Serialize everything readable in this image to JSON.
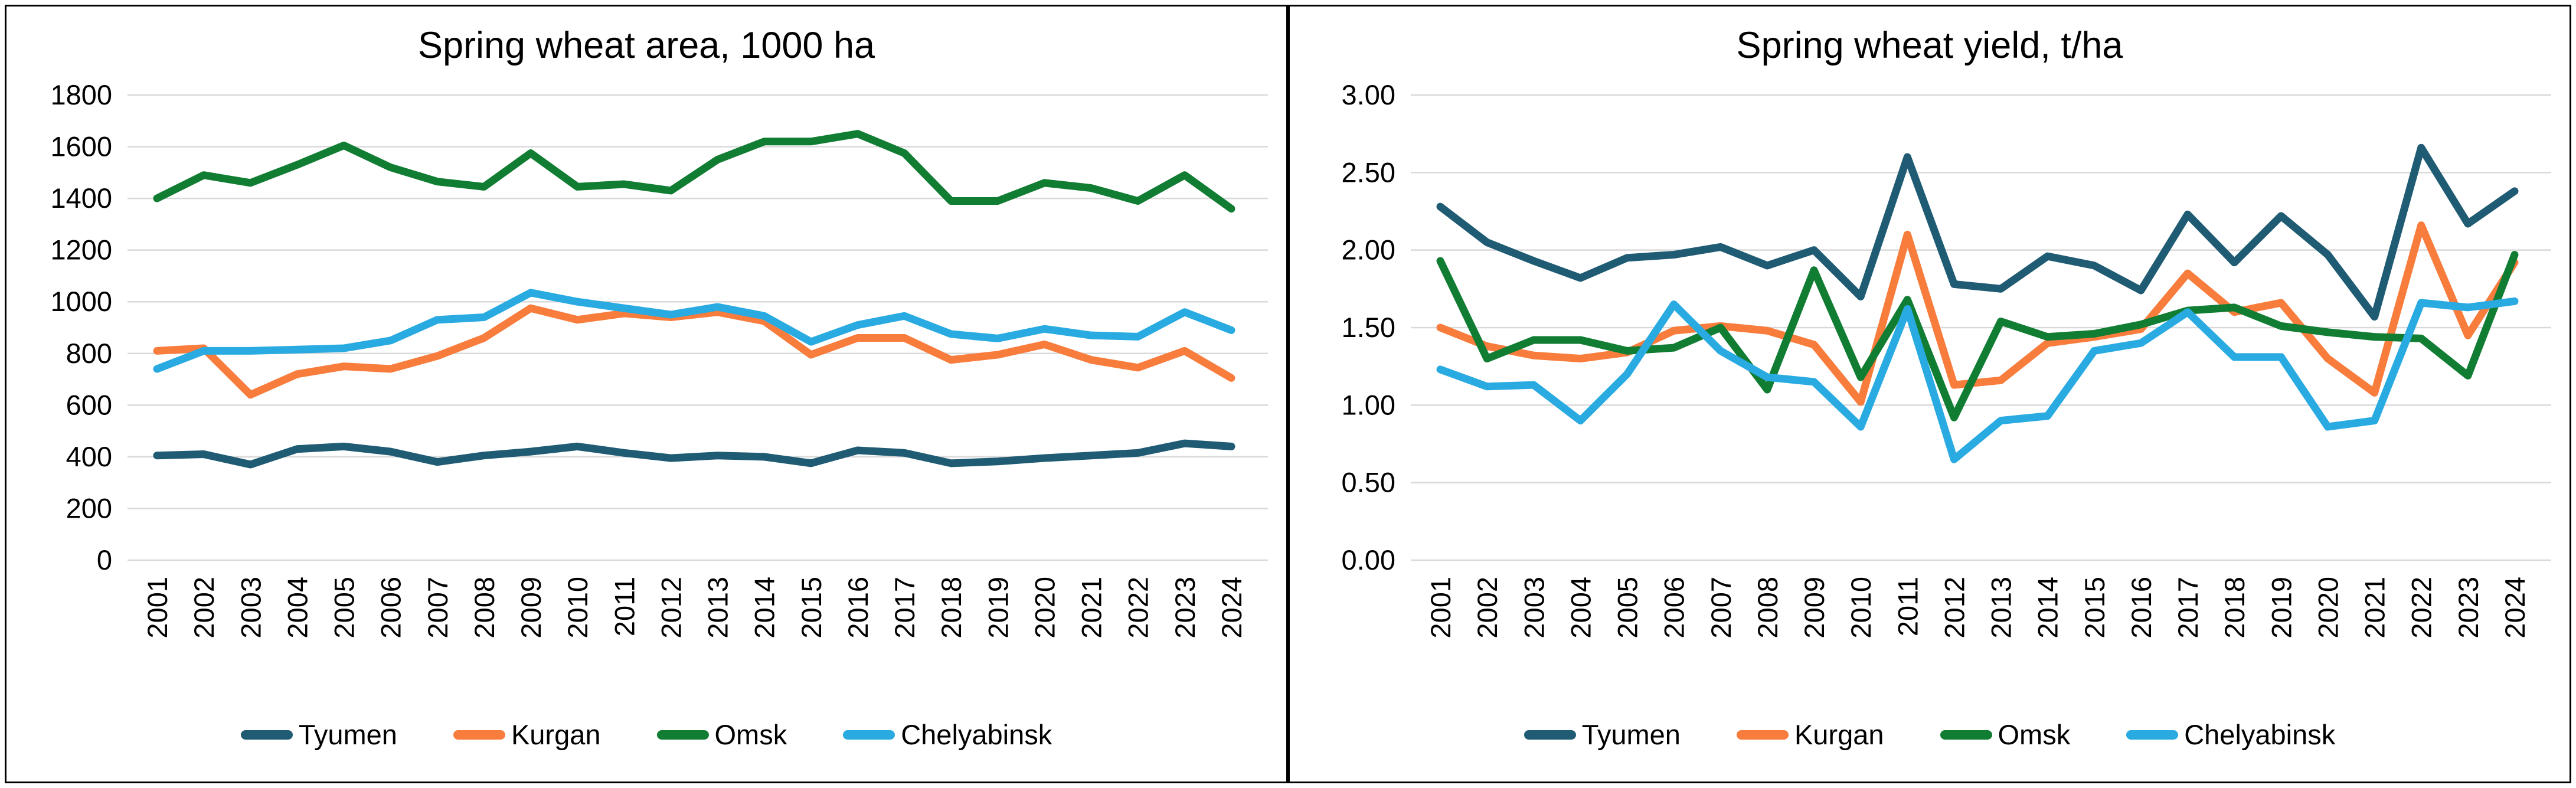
{
  "colors": {
    "tyumen": "#1F5B73",
    "kurgan": "#F87C3C",
    "omsk": "#117D33",
    "chelyabinsk": "#29ABE2",
    "gridline": "#D9D9D9",
    "text": "#000000"
  },
  "chart_data": [
    {
      "type": "line",
      "title": "Spring wheat area, 1000 ha",
      "grid": true,
      "legend_position": "bottom",
      "ylim": [
        0,
        1800
      ],
      "yticks": [
        {
          "v": 1800,
          "label": "1800"
        },
        {
          "v": 1600,
          "label": "1600"
        },
        {
          "v": 1400,
          "label": "1400"
        },
        {
          "v": 1200,
          "label": "1200"
        },
        {
          "v": 1000,
          "label": "1000"
        },
        {
          "v": 800,
          "label": "800"
        },
        {
          "v": 600,
          "label": "600"
        },
        {
          "v": 400,
          "label": "400"
        },
        {
          "v": 200,
          "label": "200"
        },
        {
          "v": 0,
          "label": "0"
        }
      ],
      "categories": [
        "2001",
        "2002",
        "2003",
        "2004",
        "2005",
        "2006",
        "2007",
        "2008",
        "2009",
        "2010",
        "2011",
        "2012",
        "2013",
        "2014",
        "2015",
        "2016",
        "2017",
        "2018",
        "2019",
        "2020",
        "2021",
        "2022",
        "2023",
        "2024"
      ],
      "series": [
        {
          "name": "Tyumen",
          "color": "#1F5B73",
          "values": [
            405,
            410,
            370,
            430,
            440,
            420,
            380,
            405,
            420,
            440,
            415,
            395,
            405,
            400,
            375,
            425,
            415,
            375,
            382,
            395,
            405,
            415,
            452,
            440
          ]
        },
        {
          "name": "Kurgan",
          "color": "#F87C3C",
          "values": [
            810,
            820,
            640,
            720,
            750,
            740,
            790,
            860,
            975,
            930,
            955,
            940,
            960,
            925,
            795,
            860,
            860,
            775,
            795,
            835,
            775,
            745,
            810,
            705
          ]
        },
        {
          "name": "Omsk",
          "color": "#117D33",
          "values": [
            1400,
            1490,
            1460,
            1530,
            1605,
            1520,
            1465,
            1445,
            1575,
            1445,
            1455,
            1430,
            1550,
            1620,
            1620,
            1650,
            1575,
            1390,
            1390,
            1460,
            1440,
            1390,
            1490,
            1360
          ]
        },
        {
          "name": "Chelyabinsk",
          "color": "#29ABE2",
          "values": [
            740,
            810,
            810,
            815,
            820,
            850,
            930,
            940,
            1035,
            1000,
            975,
            950,
            980,
            945,
            845,
            910,
            945,
            875,
            858,
            895,
            870,
            865,
            960,
            890
          ]
        }
      ]
    },
    {
      "type": "line",
      "title": "Spring wheat yield, t/ha",
      "grid": true,
      "legend_position": "bottom",
      "ylim": [
        0,
        3
      ],
      "yticks": [
        {
          "v": 3,
          "label": "3.00"
        },
        {
          "v": 2.5,
          "label": "2.50"
        },
        {
          "v": 2,
          "label": "2.00"
        },
        {
          "v": 1.5,
          "label": "1.50"
        },
        {
          "v": 1,
          "label": "1.00"
        },
        {
          "v": 0.5,
          "label": "0.50"
        },
        {
          "v": 0,
          "label": "0.00"
        }
      ],
      "categories": [
        "2001",
        "2002",
        "2003",
        "2004",
        "2005",
        "2006",
        "2007",
        "2008",
        "2009",
        "2010",
        "2011",
        "2012",
        "2013",
        "2014",
        "2015",
        "2016",
        "2017",
        "2018",
        "2019",
        "2020",
        "2021",
        "2022",
        "2023",
        "2024"
      ],
      "series": [
        {
          "name": "Tyumen",
          "color": "#1F5B73",
          "values": [
            2.28,
            2.05,
            1.93,
            1.82,
            1.95,
            1.97,
            2.02,
            1.9,
            2.0,
            1.7,
            2.6,
            1.78,
            1.75,
            1.96,
            1.9,
            1.74,
            2.23,
            1.92,
            2.22,
            1.97,
            1.57,
            2.66,
            2.17,
            2.38
          ]
        },
        {
          "name": "Kurgan",
          "color": "#F87C3C",
          "values": [
            1.5,
            1.38,
            1.32,
            1.3,
            1.34,
            1.48,
            1.51,
            1.48,
            1.39,
            1.02,
            2.1,
            1.13,
            1.16,
            1.4,
            1.44,
            1.49,
            1.85,
            1.6,
            1.66,
            1.3,
            1.08,
            2.16,
            1.45,
            1.92
          ]
        },
        {
          "name": "Omsk",
          "color": "#117D33",
          "values": [
            1.93,
            1.3,
            1.42,
            1.42,
            1.35,
            1.37,
            1.5,
            1.1,
            1.87,
            1.18,
            1.68,
            0.92,
            1.54,
            1.44,
            1.46,
            1.52,
            1.61,
            1.63,
            1.51,
            1.47,
            1.44,
            1.43,
            1.19,
            1.97
          ]
        },
        {
          "name": "Chelyabinsk",
          "color": "#29ABE2",
          "values": [
            1.23,
            1.12,
            1.13,
            0.9,
            1.2,
            1.65,
            1.35,
            1.18,
            1.15,
            0.86,
            1.62,
            0.65,
            0.9,
            0.93,
            1.35,
            1.4,
            1.6,
            1.31,
            1.31,
            0.86,
            0.9,
            1.66,
            1.63,
            1.67
          ]
        }
      ]
    }
  ]
}
